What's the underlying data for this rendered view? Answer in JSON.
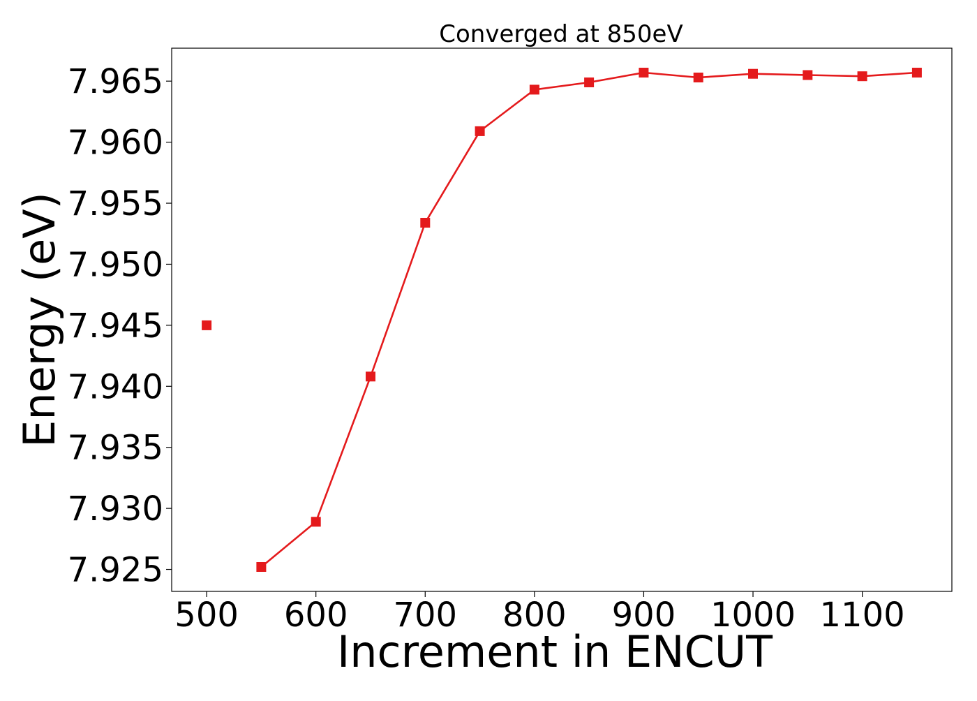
{
  "chart_data": {
    "type": "line",
    "title": "Converged at 850eV",
    "xlabel": "Increment in ENCUT",
    "ylabel": "Energy (eV)",
    "xlim": [
      468,
      1182
    ],
    "ylim": [
      7.9232,
      7.9677
    ],
    "xticks": [
      500,
      600,
      700,
      800,
      900,
      1000,
      1100
    ],
    "yticks": [
      7.925,
      7.93,
      7.935,
      7.94,
      7.945,
      7.95,
      7.955,
      7.96,
      7.965
    ],
    "ytick_labels": [
      "7.925",
      "7.930",
      "7.935",
      "7.940",
      "7.945",
      "7.950",
      "7.955",
      "7.960",
      "7.965"
    ],
    "grid": false,
    "series": [
      {
        "color": "#e41a1c",
        "marker": "square",
        "x": [
          500,
          550,
          600,
          650,
          700,
          750,
          800,
          850,
          900,
          950,
          1000,
          1050,
          1100,
          1150
        ],
        "y": [
          7.945,
          7.9252,
          7.9289,
          7.9408,
          7.9534,
          7.9609,
          7.9643,
          7.9649,
          7.9657,
          7.9653,
          7.9656,
          7.9655,
          7.9654,
          7.9657
        ],
        "segments_from_index": 1
      }
    ]
  }
}
